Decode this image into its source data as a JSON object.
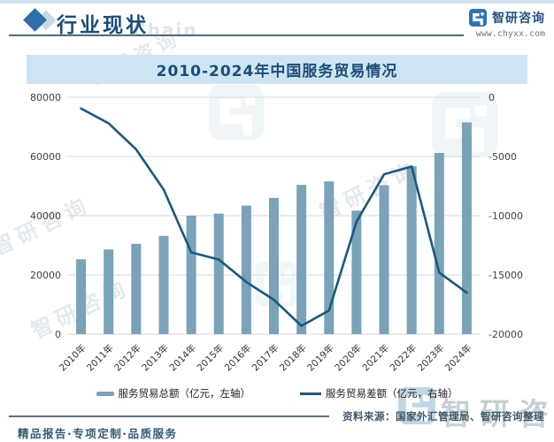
{
  "header": {
    "title": "行业现状",
    "brand_name": "智研咨询",
    "brand_url": "www.chyxx.com"
  },
  "watermark": {
    "text": "智研咨询",
    "chain": "Chain"
  },
  "chart_data": {
    "type": "bar",
    "title": "2010-2024年中国服务贸易情况",
    "categories": [
      "2010年",
      "2011年",
      "2012年",
      "2013年",
      "2014年",
      "2015年",
      "2016年",
      "2017年",
      "2018年",
      "2019年",
      "2020年",
      "2021年",
      "2022年",
      "2023年",
      "2024年"
    ],
    "series": [
      {
        "name": "服务贸易总额（亿元，左轴）",
        "type": "bar",
        "axis": "left",
        "values": [
          25300,
          28600,
          30500,
          33200,
          40000,
          40700,
          43400,
          46000,
          50400,
          51600,
          41700,
          50300,
          56700,
          61200,
          71500
        ]
      },
      {
        "name": "服务贸易差额（亿元，右轴）",
        "type": "line",
        "axis": "right",
        "values": [
          -950,
          -2200,
          -4400,
          -7800,
          -13100,
          -13700,
          -15600,
          -17100,
          -19300,
          -18000,
          -10500,
          -6500,
          -5850,
          -14800,
          -16500
        ]
      }
    ],
    "left_axis": {
      "min": 0,
      "max": 80000,
      "ticks": [
        80000,
        60000,
        40000,
        20000,
        0
      ]
    },
    "right_axis": {
      "min": -20000,
      "max": 0,
      "ticks": [
        0,
        -5000,
        -10000,
        -15000,
        -20000
      ]
    },
    "grid": true,
    "legend_position": "bottom",
    "colors": {
      "bar": "#7aa2b8",
      "line": "#17597d",
      "grid": "#d9d9d9",
      "axis_text": "#404040"
    }
  },
  "footer": {
    "source": "资料来源：国家外汇管理局、智研咨询整理",
    "tagline": "精品报告·专项定制·品质服务"
  }
}
